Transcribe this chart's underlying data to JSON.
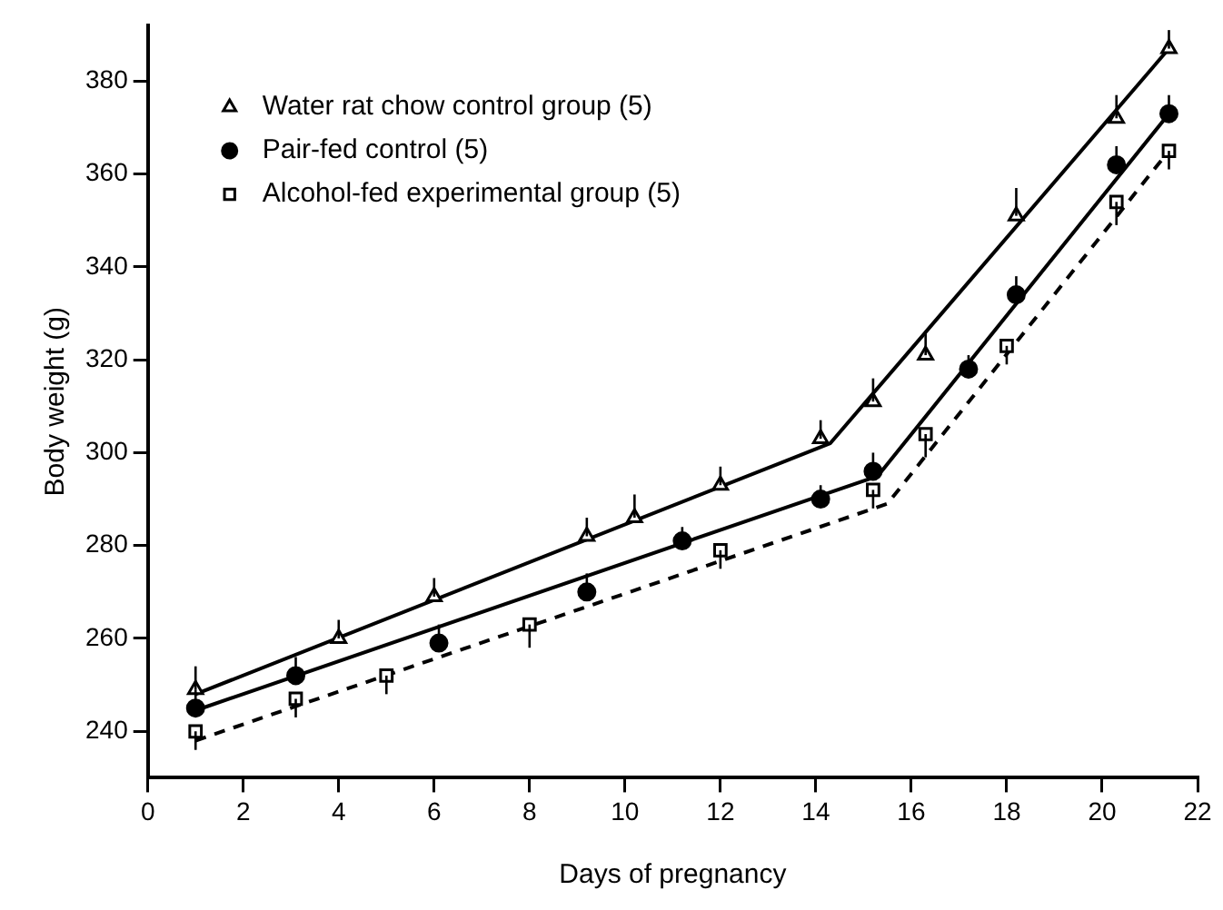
{
  "chart_data": {
    "type": "scatter",
    "xlabel": "Days of pregnancy",
    "ylabel": "Body weight (g)",
    "xlim": [
      0,
      22
    ],
    "xticks": [
      0,
      2,
      4,
      6,
      8,
      10,
      12,
      14,
      16,
      18,
      20,
      22
    ],
    "ylim": [
      230,
      392
    ],
    "yticks": [
      240,
      260,
      280,
      300,
      320,
      340,
      360,
      380
    ],
    "grid": false,
    "legend": "top left",
    "series": [
      {
        "name": "Water rat chow control group (5)",
        "color": "#000000",
        "marker": "triangle",
        "x": [
          1,
          4,
          6,
          9.2,
          10.2,
          12,
          14.1,
          15.2,
          16.3,
          18.2,
          20.3,
          21.4
        ],
        "values": [
          249,
          260,
          269,
          282,
          286,
          293,
          303,
          311,
          321,
          351,
          372,
          387
        ],
        "errors": [
          [
            249,
            254
          ],
          [
            260,
            264
          ],
          [
            269,
            273
          ],
          [
            282,
            286
          ],
          [
            286,
            291
          ],
          [
            293,
            297
          ],
          [
            303,
            307
          ],
          [
            311,
            316
          ],
          [
            321,
            326
          ],
          [
            351,
            357
          ],
          [
            372,
            377
          ],
          [
            387,
            391
          ]
        ]
      },
      {
        "name": "Pair-fed control (5)",
        "color": "#000000",
        "marker": "circle",
        "x": [
          1,
          3.1,
          6.1,
          9.2,
          11.2,
          14.1,
          15.2,
          17.2,
          18.2,
          20.3,
          21.4
        ],
        "values": [
          245,
          252,
          259,
          270,
          281,
          290,
          296,
          318,
          334,
          362,
          373
        ],
        "errors": [
          [
            245,
            249
          ],
          [
            252,
            256
          ],
          [
            259,
            263
          ],
          [
            270,
            274
          ],
          [
            281,
            284
          ],
          [
            290,
            293
          ],
          [
            296,
            300
          ],
          [
            318,
            321
          ],
          [
            334,
            338
          ],
          [
            362,
            366
          ],
          [
            373,
            377
          ]
        ]
      },
      {
        "name": "Alcohol-fed experimental group (5)",
        "color": "#000000",
        "marker": "square",
        "x": [
          1,
          3.1,
          5,
          8,
          12,
          15.2,
          16.3,
          18,
          20.3,
          21.4
        ],
        "values": [
          240,
          247,
          252,
          263,
          279,
          292,
          304,
          323,
          354,
          365
        ],
        "errors": [
          [
            236,
            240
          ],
          [
            243,
            247
          ],
          [
            248,
            252
          ],
          [
            258,
            263
          ],
          [
            275,
            279
          ],
          [
            288,
            292
          ],
          [
            299,
            304
          ],
          [
            319,
            323
          ],
          [
            349,
            354
          ],
          [
            361,
            365
          ]
        ]
      },
      {
        "type": "line",
        "color": "#000000",
        "line_style": "solid",
        "x": [
          1,
          14.3,
          21.4
        ],
        "values": [
          248,
          302,
          387
        ]
      },
      {
        "type": "line",
        "color": "#000000",
        "line_style": "solid",
        "x": [
          1,
          15.3,
          21.4
        ],
        "values": [
          244.5,
          295,
          373
        ]
      },
      {
        "type": "line",
        "color": "#000000",
        "line_style": "dashed",
        "x": [
          1,
          15.5,
          21.4
        ],
        "values": [
          238,
          289,
          365
        ]
      }
    ]
  }
}
